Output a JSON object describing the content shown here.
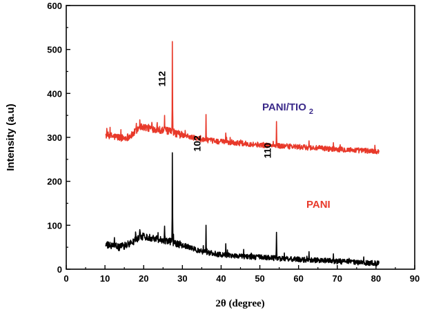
{
  "chart_data": {
    "type": "line",
    "xlabel": "2θ (degree)",
    "ylabel": "Intensity (a.u)",
    "xlim": [
      0,
      90
    ],
    "ylim": [
      0,
      600
    ],
    "x_ticks": [
      0,
      10,
      20,
      30,
      40,
      50,
      60,
      70,
      80,
      90
    ],
    "y_ticks": [
      0,
      100,
      200,
      300,
      400,
      500,
      600
    ],
    "grid": false,
    "series": [
      {
        "name": "PANI/TIO2",
        "label_main": "PANI/TIO",
        "label_sub": "2",
        "color": "#e8392a",
        "x_range": [
          10.2,
          80.8
        ],
        "base_points": [
          [
            10.2,
            305
          ],
          [
            15,
            298
          ],
          [
            17,
            305
          ],
          [
            19,
            325
          ],
          [
            22,
            320
          ],
          [
            26,
            315
          ],
          [
            30,
            305
          ],
          [
            35,
            295
          ],
          [
            40,
            290
          ],
          [
            50,
            283
          ],
          [
            60,
            278
          ],
          [
            70,
            273
          ],
          [
            80.8,
            268
          ]
        ],
        "noise": 6,
        "peaks": [
          [
            19.0,
            340
          ],
          [
            25.4,
            350
          ],
          [
            27.4,
            518
          ],
          [
            36.1,
            352
          ],
          [
            41.2,
            310
          ],
          [
            54.3,
            336
          ],
          [
            62.7,
            292
          ],
          [
            69.0,
            288
          ]
        ]
      },
      {
        "name": "PANI",
        "label_main": "PANI",
        "color": "#000000",
        "x_range": [
          10.2,
          80.8
        ],
        "base_points": [
          [
            10.2,
            55
          ],
          [
            14,
            50
          ],
          [
            17,
            60
          ],
          [
            19,
            75
          ],
          [
            22,
            72
          ],
          [
            26,
            65
          ],
          [
            30,
            55
          ],
          [
            35,
            40
          ],
          [
            40,
            33
          ],
          [
            50,
            27
          ],
          [
            60,
            22
          ],
          [
            70,
            18
          ],
          [
            80.8,
            13
          ]
        ],
        "noise": 6,
        "peaks": [
          [
            19.0,
            90
          ],
          [
            25.4,
            98
          ],
          [
            27.4,
            265
          ],
          [
            36.1,
            100
          ],
          [
            41.2,
            58
          ],
          [
            54.3,
            84
          ],
          [
            62.7,
            40
          ],
          [
            69.0,
            35
          ]
        ]
      }
    ],
    "annotations": [
      {
        "text": "112",
        "x": 27.4,
        "y": 518
      },
      {
        "text": "102",
        "x": 36.1,
        "y": 352
      },
      {
        "text": "110",
        "x": 54.3,
        "y": 336
      }
    ]
  }
}
